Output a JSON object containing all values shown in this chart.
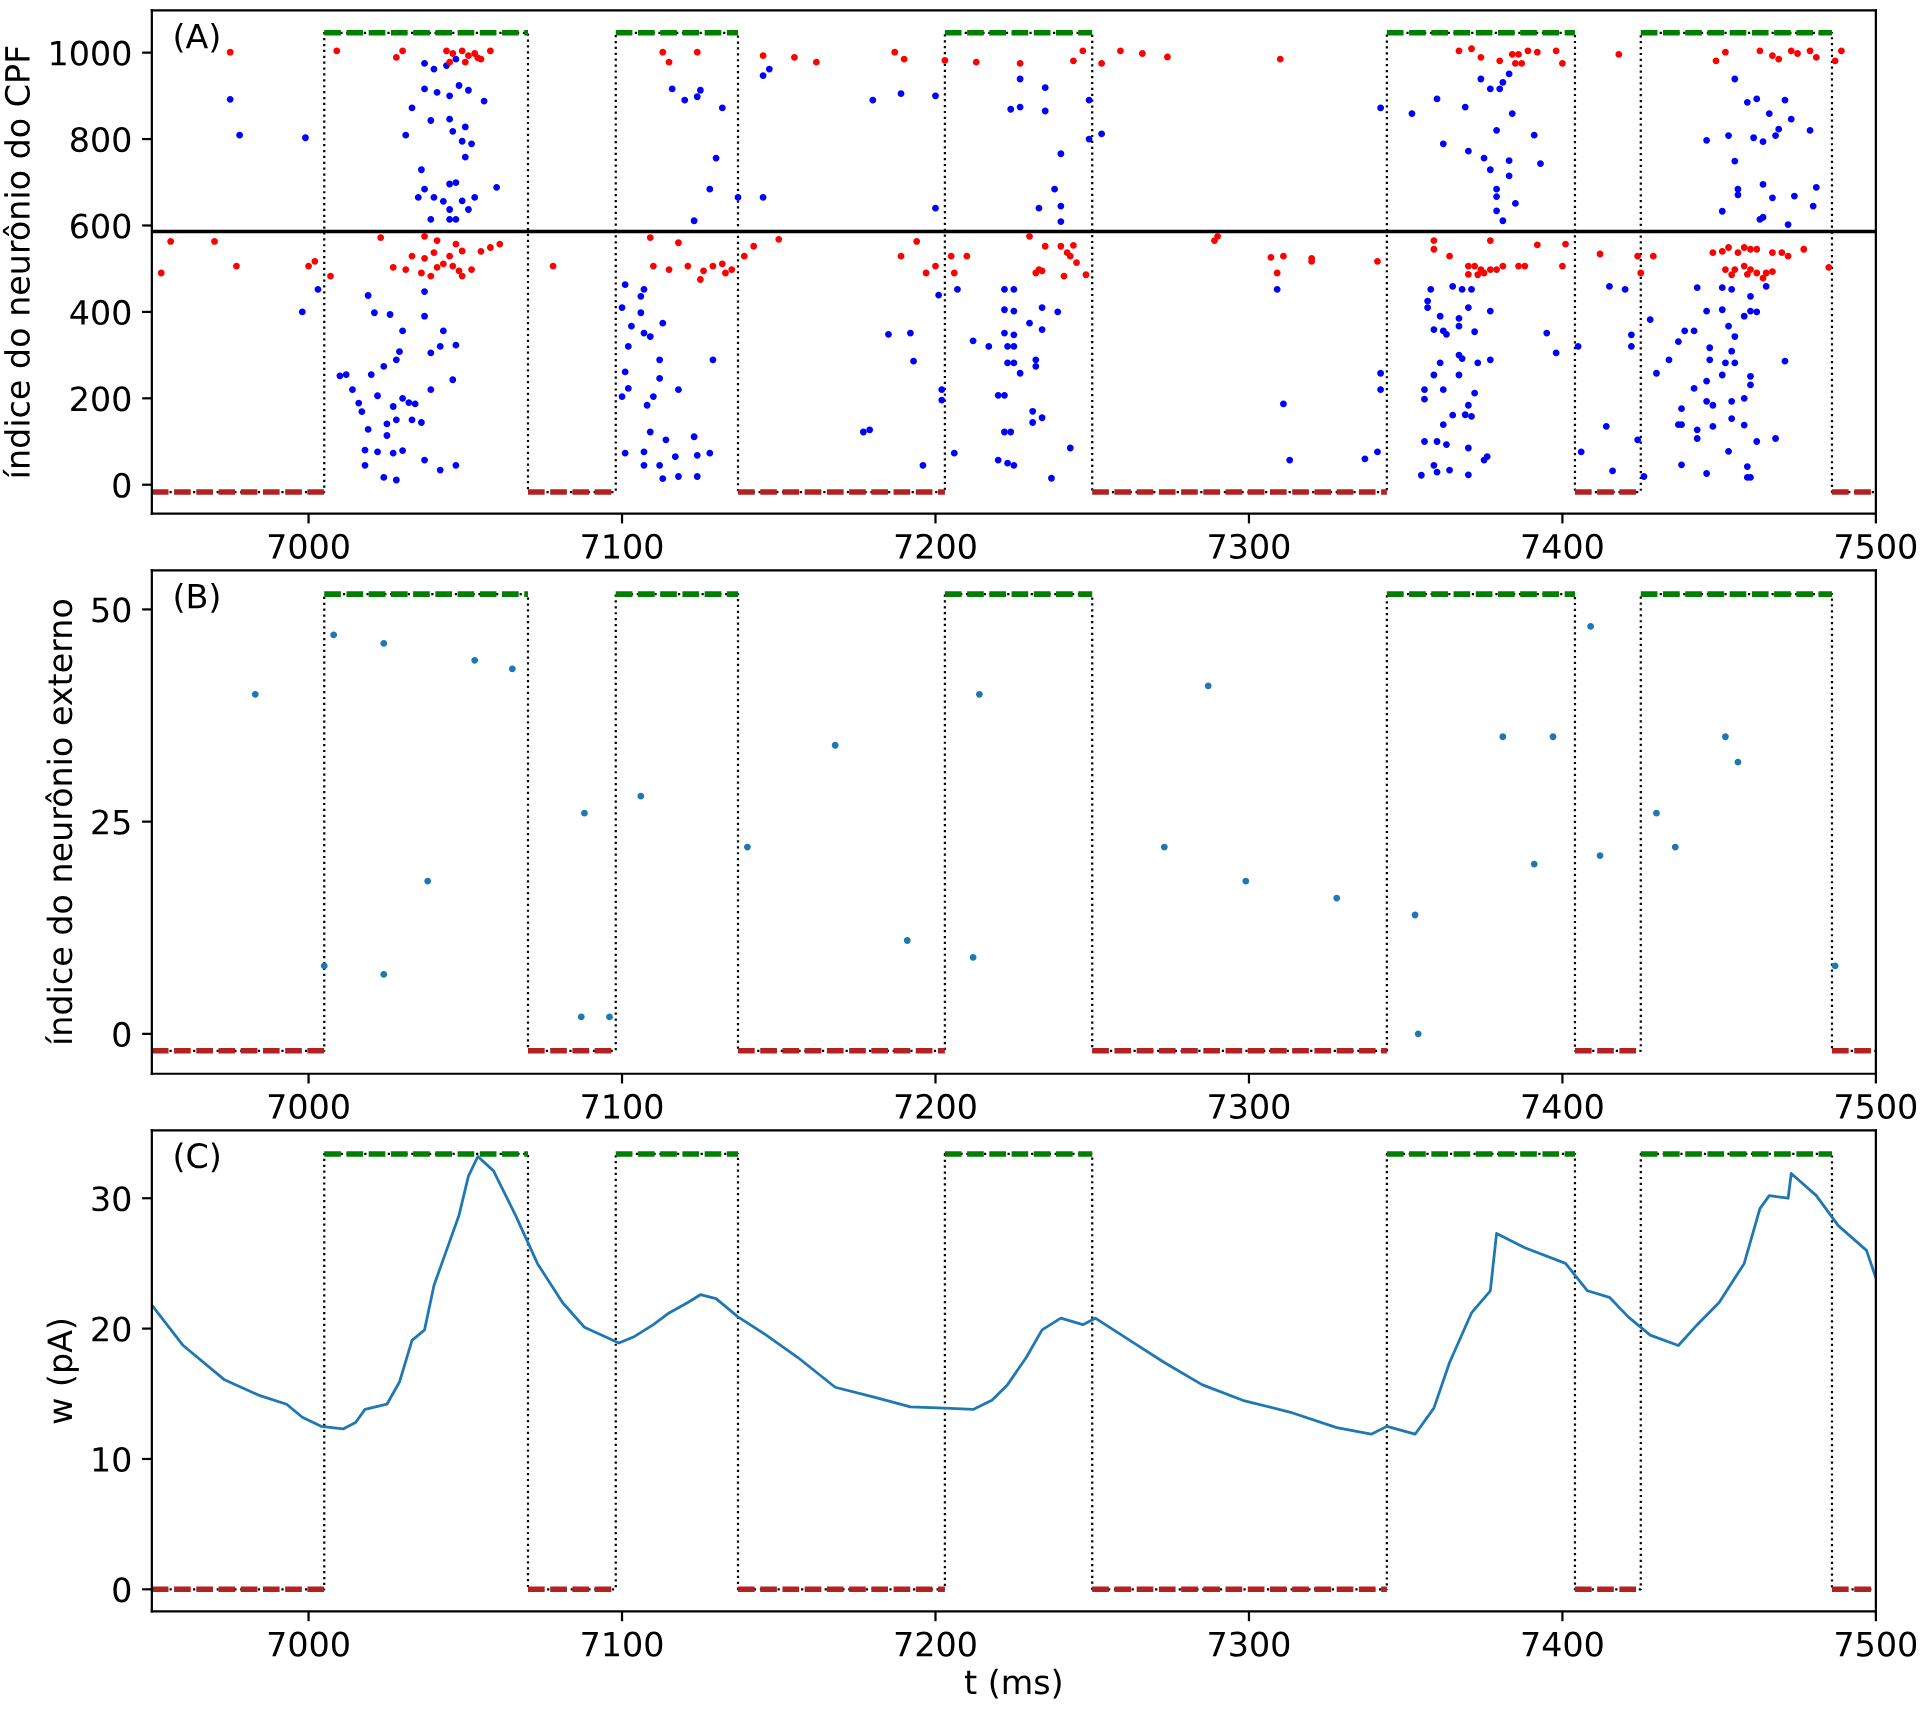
{
  "chart_data": [
    {
      "type": "scatter",
      "annotations": [
        "(A)"
      ],
      "ylabel": "índice do neurônio do CPF",
      "xlim": [
        6950,
        7500
      ],
      "ylim": [
        -67,
        1098
      ],
      "xticks": [
        7000,
        7100,
        7200,
        7300,
        7400,
        7500
      ],
      "yticks": [
        0,
        200,
        400,
        600,
        800,
        1000
      ],
      "ref_lines": [
        {
          "axis": "y",
          "value": 586,
          "color": "#000000"
        }
      ],
      "series": [
        {
          "type": "step",
          "color": "#000000",
          "line_style": "dotted",
          "marker": "none",
          "x": [
            6950,
            7005,
            7070,
            7098,
            7137,
            7203,
            7250,
            7344,
            7404,
            7425,
            7486,
            7500
          ],
          "values": [
            -17,
            1046,
            -17,
            1046,
            -17,
            1046,
            -17,
            1046,
            -17,
            1046,
            -17,
            -17
          ]
        },
        {
          "type": "line",
          "color": "#008000",
          "line_style": "dashed",
          "marker": "none",
          "x": [
            7005,
            7070,
            7084,
            7098,
            7137,
            7170,
            7203,
            7250,
            7297,
            7344,
            7404,
            7414,
            7425,
            7486
          ],
          "values": [
            1046,
            1046,
            null,
            1046,
            1046,
            null,
            1046,
            1046,
            null,
            1046,
            1046,
            null,
            1046,
            1046
          ]
        },
        {
          "type": "line",
          "color": "#b22222",
          "line_style": "dashed",
          "marker": "none",
          "x": [
            6950,
            7005,
            7037,
            7070,
            7098,
            7117,
            7137,
            7203,
            7226,
            7250,
            7344,
            7374,
            7404,
            7425,
            7455,
            7486,
            7500
          ],
          "values": [
            -17,
            -17,
            null,
            -17,
            -17,
            null,
            -17,
            -17,
            null,
            -17,
            -17,
            null,
            -17,
            -17,
            null,
            -17,
            -17
          ]
        },
        {
          "color": "#0000ff",
          "marker": "circle",
          "x": [
            6975,
            6978,
            6999,
            6998,
            7003,
            7037,
            7040,
            7044,
            7047,
            7037,
            7041,
            7045,
            7048,
            7051,
            7056,
            7033,
            7039,
            7045,
            7050,
            7031,
            7046,
            7049,
            7052,
            7050,
            7036,
            7037,
            7035,
            7040,
            7045,
            7047,
            7043,
            7049,
            7053,
            7060,
            7045,
            7051,
            7045,
            7047,
            7039,
            7019,
            7021,
            7026,
            7030,
            7037,
            7037,
            7043,
            7047,
            7010,
            7012,
            7020,
            7014,
            7024,
            7029,
            7028,
            7039,
            7042,
            7046,
            7016,
            7017,
            7022,
            7027,
            7030,
            7032,
            7034,
            7039,
            7019,
            7025,
            7028,
            7036,
            7033,
            7025,
            7018,
            7022,
            7027,
            7030,
            7018,
            7024,
            7028,
            7037,
            7042,
            7047,
            7116,
            7120,
            7124,
            7125,
            7132,
            7130,
            7128,
            7123,
            7137,
            7145,
            7145,
            7147,
            7101,
            7100,
            7107,
            7106,
            7106,
            7113,
            7103,
            7107,
            7102,
            7109,
            7112,
            7101,
            7112,
            7118,
            7129,
            7100,
            7102,
            7108,
            7110,
            7109,
            7114,
            7123,
            7101,
            7107,
            7117,
            7124,
            7128,
            7107,
            7112,
            7113,
            7118,
            7124,
            7180,
            7189,
            7200,
            7200,
            7177,
            7179,
            7185,
            7192,
            7193,
            7196,
            7201,
            7202,
            7202,
            7207,
            7212,
            7222,
            7222,
            7217,
            7222,
            7223,
            7223,
            7220,
            7222,
            7222,
            7220,
            7223,
            7206,
            7224,
            7227,
            7227,
            7235,
            7235,
            7240,
            7238,
            7240,
            7240,
            7233,
            7249,
            7249,
            7253,
            7225,
            7225,
            7225,
            7230,
            7234,
            7234,
            7225,
            7225,
            7227,
            7232,
            7232,
            7231,
            7234,
            7231,
            7224,
            7225,
            7237,
            7243,
            7239,
            7342,
            7309,
            7311,
            7313,
            7337,
            7341,
            7342,
            7342,
            7352,
            7360,
            7369,
            7374,
            7377,
            7380,
            7381,
            7384,
            7379,
            7383,
            7362,
            7370,
            7375,
            7377,
            7383,
            7393,
            7391,
            7383,
            7379,
            7379,
            7385,
            7379,
            7381,
            7358,
            7357,
            7357,
            7365,
            7368,
            7371,
            7361,
            7367,
            7370,
            7377,
            7359,
            7362,
            7367,
            7372,
            7363,
            7395,
            7398,
            7367,
            7368,
            7373,
            7377,
            7361,
            7359,
            7367,
            7356,
            7362,
            7372,
            7356,
            7370,
            7371,
            7365,
            7369,
            7362,
            7356,
            7360,
            7363,
            7370,
            7376,
            7375,
            7359,
            7360,
            7364,
            7355,
            7370,
            7405,
            7406,
            7414,
            7416,
            7415,
            7420,
            7422,
            7422,
            7455,
            7459,
            7462,
            7471,
            7466,
            7473,
            7446,
            7453,
            7461,
            7464,
            7468,
            7469,
            7479,
            7455,
            7456,
            7456,
            7464,
            7467,
            7474,
            7481,
            7480,
            7451,
            7463,
            7464,
            7472,
            7443,
            7451,
            7454,
            7460,
            7460,
            7446,
            7451,
            7458,
            7462,
            7465,
            7428,
            7439,
            7442,
            7437,
            7453,
            7455,
            7447,
            7454,
            7434,
            7447,
            7452,
            7455,
            7471,
            7430,
            7451,
            7460,
            7460,
            7446,
            7442,
            7448,
            7446,
            7454,
            7458,
            7438,
            7437,
            7438,
            7443,
            7448,
            7454,
            7458,
            7468,
            7443,
            7462,
            7424,
            7438,
            7446,
            7453,
            7459,
            7459,
            7460,
            7426
          ],
          "values": [
            892,
            809,
            803,
            400,
            452,
            975,
            962,
            970,
            985,
            916,
            908,
            900,
            924,
            913,
            888,
            872,
            843,
            846,
            828,
            809,
            818,
            795,
            789,
            758,
            729,
            684,
            665,
            665,
            696,
            699,
            656,
            657,
            665,
            688,
            637,
            637,
            614,
            614,
            614,
            438,
            398,
            394,
            356,
            447,
            390,
            356,
            323,
            252,
            255,
            255,
            220,
            274,
            308,
            289,
            305,
            320,
            243,
            189,
            169,
            206,
            181,
            200,
            190,
            187,
            220,
            128,
            141,
            150,
            144,
            150,
            114,
            80,
            76,
            73,
            79,
            45,
            17,
            11,
            57,
            34,
            45,
            916,
            890,
            898,
            913,
            872,
            756,
            684,
            611,
            665,
            665,
            947,
            962,
            463,
            410,
            452,
            436,
            398,
            374,
            367,
            351,
            320,
            343,
            289,
            261,
            246,
            220,
            289,
            204,
            223,
            184,
            204,
            122,
            104,
            111,
            73,
            76,
            65,
            68,
            73,
            45,
            45,
            14,
            19,
            19,
            890,
            905,
            900,
            640,
            122,
            127,
            348,
            351,
            286,
            45,
            439,
            220,
            196,
            452,
            333,
            452,
            405,
            320,
            351,
            320,
            282,
            207,
            207,
            122,
            57,
            50,
            73,
            869,
            939,
            874,
            919,
            865,
            766,
            684,
            645,
            609,
            640,
            890,
            800,
            812,
            452,
            402,
            347,
            374,
            410,
            359,
            320,
            282,
            258,
            289,
            274,
            170,
            155,
            144,
            122,
            45,
            15,
            85,
            400,
            872,
            452,
            187,
            57,
            60,
            76,
            220,
            258,
            859,
            893,
            874,
            939,
            916,
            916,
            931,
            859,
            820,
            951,
            789,
            772,
            756,
            729,
            750,
            743,
            809,
            715,
            684,
            667,
            651,
            634,
            611,
            452,
            425,
            410,
            459,
            452,
            452,
            390,
            385,
            410,
            402,
            359,
            356,
            367,
            354,
            348,
            351,
            305,
            300,
            292,
            282,
            289,
            282,
            254,
            254,
            220,
            220,
            212,
            198,
            184,
            158,
            161,
            162,
            139,
            100,
            100,
            93,
            85,
            65,
            57,
            45,
            29,
            34,
            22,
            23,
            320,
            76,
            135,
            32,
            459,
            452,
            347,
            320,
            939,
            885,
            893,
            890,
            859,
            846,
            797,
            808,
            803,
            794,
            808,
            823,
            820,
            749,
            684,
            671,
            695,
            664,
            668,
            688,
            645,
            633,
            614,
            619,
            602,
            456,
            456,
            452,
            436,
            402,
            402,
            405,
            390,
            400,
            459,
            382,
            356,
            356,
            331,
            367,
            343,
            317,
            309,
            289,
            289,
            282,
            282,
            286,
            258,
            254,
            251,
            231,
            240,
            223,
            184,
            193,
            193,
            200,
            176,
            139,
            139,
            127,
            135,
            153,
            138,
            107,
            107,
            100,
            104,
            46,
            26,
            77,
            42,
            17,
            17,
            19
          ]
        },
        {
          "color": "#ff0000",
          "marker": "circle",
          "x": [
            6975,
            6953,
            6956,
            6970,
            6977,
            7000,
            7002,
            7007,
            7009,
            7023,
            7028,
            7030,
            7044,
            7046,
            7049,
            7051,
            7053,
            7055,
            7058,
            7045,
            7050,
            7054,
            7037,
            7041,
            7047,
            7049,
            7055,
            7061,
            7058,
            7033,
            7037,
            7040,
            7045,
            7027,
            7031,
            7036,
            7041,
            7043,
            7046,
            7048,
            7052,
            7039,
            7049,
            7078,
            7113,
            7115,
            7124,
            7109,
            7118,
            7110,
            7115,
            7121,
            7126,
            7129,
            7132,
            7133,
            7135,
            7125,
            7139,
            7142,
            7150,
            7145,
            7155,
            7162,
            7187,
            7190,
            7189,
            7194,
            7197,
            7200,
            7203,
            7205,
            7206,
            7210,
            7213,
            7227,
            7244,
            7247,
            7253,
            7259,
            7266,
            7274,
            7310,
            7230,
            7235,
            7240,
            7242,
            7243,
            7245,
            7244,
            7233,
            7232,
            7234,
            7241,
            7248,
            7289,
            7290,
            7307,
            7311,
            7320,
            7320,
            7309,
            7341,
            7367,
            7371,
            7374,
            7380,
            7384,
            7386,
            7389,
            7392,
            7398,
            7400,
            7385,
            7387,
            7418,
            7359,
            7359,
            7364,
            7377,
            7392,
            7401,
            7400,
            7370,
            7372,
            7374,
            7377,
            7379,
            7381,
            7386,
            7388,
            7370,
            7373,
            7375,
            7412,
            7424,
            7425,
            7429,
            7449,
            7452,
            7463,
            7467,
            7469,
            7473,
            7475,
            7479,
            7481,
            7487,
            7489,
            7448,
            7451,
            7453,
            7458,
            7460,
            7462,
            7456,
            7452,
            7455,
            7458,
            7460,
            7462,
            7465,
            7467,
            7454,
            7459,
            7467,
            7470,
            7472,
            7477,
            7485,
            7464
          ],
          "values": [
            1001,
            490,
            563,
            563,
            506,
            506,
            517,
            483,
            1004,
            572,
            989,
            1004,
            1004,
            998,
            1004,
            993,
            998,
            985,
            1004,
            978,
            978,
            988,
            575,
            565,
            557,
            541,
            540,
            557,
            549,
            529,
            524,
            537,
            529,
            503,
            498,
            490,
            503,
            511,
            506,
            495,
            498,
            483,
            483,
            506,
            1001,
            978,
            1001,
            572,
            560,
            506,
            498,
            506,
            495,
            506,
            511,
            490,
            498,
            475,
            529,
            552,
            568,
            993,
            989,
            978,
            1001,
            985,
            529,
            563,
            490,
            506,
            982,
            529,
            490,
            529,
            978,
            975,
            981,
            1004,
            975,
            1004,
            998,
            990,
            985,
            575,
            552,
            552,
            537,
            529,
            514,
            554,
            498,
            490,
            495,
            483,
            486,
            565,
            575,
            526,
            529,
            524,
            517,
            490,
            517,
            1004,
            1009,
            989,
            981,
            996,
            996,
            1004,
            1001,
            1004,
            975,
            975,
            975,
            996,
            565,
            545,
            529,
            565,
            555,
            557,
            506,
            506,
            506,
            498,
            498,
            498,
            506,
            506,
            506,
            487,
            486,
            490,
            534,
            529,
            490,
            529,
            981,
            1001,
            1004,
            993,
            985,
            1004,
            998,
            1004,
            989,
            981,
            1004,
            537,
            540,
            549,
            549,
            545,
            545,
            537,
            498,
            498,
            506,
            498,
            490,
            490,
            493,
            486,
            487,
            537,
            537,
            529,
            545,
            503,
            478
          ]
        }
      ]
    },
    {
      "type": "scatter",
      "annotations": [
        "(B)"
      ],
      "ylabel": "índice do neurônio externo",
      "xlim": [
        6950,
        7500
      ],
      "ylim": [
        -4.7,
        54.6
      ],
      "xticks": [
        7000,
        7100,
        7200,
        7300,
        7400,
        7500
      ],
      "yticks": [
        0,
        25,
        50
      ],
      "series": [
        {
          "type": "step",
          "color": "#000000",
          "line_style": "dotted",
          "marker": "none",
          "x": [
            6950,
            7005,
            7070,
            7098,
            7137,
            7203,
            7250,
            7344,
            7404,
            7425,
            7486,
            7500
          ],
          "values": [
            -2.0,
            51.8,
            -2.0,
            51.8,
            -2.0,
            51.8,
            -2.0,
            51.8,
            -2.0,
            51.8,
            -2.0,
            -2.0
          ]
        },
        {
          "type": "line",
          "color": "#008000",
          "line_style": "dashed",
          "marker": "none",
          "x": [
            7005,
            7070,
            7084,
            7098,
            7137,
            7170,
            7203,
            7250,
            7297,
            7344,
            7404,
            7414,
            7425,
            7486
          ],
          "values": [
            51.8,
            51.8,
            null,
            51.8,
            51.8,
            null,
            51.8,
            51.8,
            null,
            51.8,
            51.8,
            null,
            51.8,
            51.8
          ]
        },
        {
          "type": "line",
          "color": "#b22222",
          "line_style": "dashed",
          "marker": "none",
          "x": [
            6950,
            7005,
            7037,
            7070,
            7098,
            7117,
            7137,
            7203,
            7226,
            7250,
            7344,
            7374,
            7404,
            7425,
            7455,
            7486,
            7500
          ],
          "values": [
            -2.0,
            -2.0,
            null,
            -2.0,
            -2.0,
            null,
            -2.0,
            -2.0,
            null,
            -2.0,
            -2.0,
            null,
            -2.0,
            -2.0,
            null,
            -2.0,
            -2.0
          ]
        },
        {
          "color": "#1f77b4",
          "marker": "circle",
          "x": [
            6983,
            7005,
            7008,
            7024,
            7024,
            7038,
            7053,
            7065,
            7087,
            7088,
            7096,
            7106,
            7140,
            7168,
            7191,
            7212,
            7214,
            7273,
            7287,
            7299,
            7328,
            7353,
            7354,
            7381,
            7391,
            7397,
            7409,
            7412,
            7430,
            7436,
            7452,
            7456,
            7487
          ],
          "values": [
            40,
            8,
            47,
            46,
            7,
            18,
            44,
            43,
            2,
            26,
            2,
            28,
            22,
            34,
            11,
            9,
            40,
            22,
            41,
            18,
            16,
            14,
            0,
            35,
            20,
            35,
            48,
            21,
            26,
            22,
            35,
            32,
            8
          ]
        }
      ]
    },
    {
      "type": "line",
      "annotations": [
        "(C)"
      ],
      "xlabel": "t (ms)",
      "ylabel": "w (pA)",
      "xlim": [
        6950,
        7500
      ],
      "ylim": [
        -1.7,
        35.2
      ],
      "xticks": [
        7000,
        7100,
        7200,
        7300,
        7400,
        7500
      ],
      "yticks": [
        0,
        10,
        20,
        30
      ],
      "series": [
        {
          "type": "step",
          "color": "#000000",
          "line_style": "dotted",
          "marker": "none",
          "x": [
            6950,
            7005,
            7070,
            7098,
            7137,
            7203,
            7250,
            7344,
            7404,
            7425,
            7486,
            7500
          ],
          "values": [
            0,
            33.4,
            0,
            33.4,
            0,
            33.4,
            0,
            33.4,
            0,
            33.4,
            0,
            0
          ]
        },
        {
          "type": "line",
          "color": "#008000",
          "line_style": "dashed",
          "marker": "none",
          "x": [
            7005,
            7070,
            7084,
            7098,
            7137,
            7170,
            7203,
            7250,
            7297,
            7344,
            7404,
            7414,
            7425,
            7486
          ],
          "values": [
            33.4,
            33.4,
            null,
            33.4,
            33.4,
            null,
            33.4,
            33.4,
            null,
            33.4,
            33.4,
            null,
            33.4,
            33.4
          ]
        },
        {
          "type": "line",
          "color": "#b22222",
          "line_style": "dashed",
          "marker": "none",
          "x": [
            6950,
            7005,
            7037,
            7070,
            7098,
            7117,
            7137,
            7203,
            7226,
            7250,
            7344,
            7374,
            7404,
            7425,
            7455,
            7486,
            7500
          ],
          "values": [
            0,
            0,
            null,
            0,
            0,
            null,
            0,
            0,
            null,
            0,
            0,
            null,
            0,
            0,
            null,
            0,
            0
          ]
        },
        {
          "color": "#1f77b4",
          "line_style": "solid",
          "marker": "none",
          "x": [
            6950,
            6960,
            6973,
            6984,
            6993,
            6998,
            7004,
            7011,
            7015,
            7018,
            7025,
            7029,
            7033,
            7037,
            7040,
            7044,
            7048,
            7051,
            7054,
            7059,
            7066,
            7073,
            7081,
            7088,
            7099,
            7104,
            7110,
            7115,
            7121,
            7125,
            7130,
            7137,
            7146,
            7156,
            7168,
            7181,
            7192,
            7203,
            7212,
            7218,
            7223,
            7229,
            7234,
            7240,
            7247,
            7251,
            7262,
            7273,
            7285,
            7298,
            7313,
            7328,
            7339,
            7344,
            7353,
            7359,
            7364,
            7371,
            7377,
            7379,
            7388,
            7401,
            7408,
            7415,
            7421,
            7428,
            7437,
            7443,
            7450,
            7458,
            7463,
            7466,
            7472,
            7473,
            7481,
            7488,
            7497,
            7500
          ],
          "values": [
            21.8,
            18.7,
            16.1,
            14.9,
            14.2,
            13.2,
            12.5,
            12.3,
            12.8,
            13.8,
            14.2,
            15.9,
            19.1,
            19.9,
            23.3,
            26.0,
            28.7,
            31.7,
            33.2,
            32.1,
            28.7,
            25.0,
            22.0,
            20.1,
            18.9,
            19.4,
            20.3,
            21.2,
            22.0,
            22.6,
            22.3,
            20.9,
            19.5,
            17.8,
            15.5,
            14.7,
            14.0,
            13.9,
            13.8,
            14.5,
            15.7,
            17.8,
            19.9,
            20.8,
            20.3,
            20.8,
            19.1,
            17.4,
            15.7,
            14.5,
            13.6,
            12.4,
            11.9,
            12.5,
            11.9,
            13.9,
            17.4,
            21.2,
            22.9,
            27.3,
            26.2,
            25.0,
            22.9,
            22.4,
            20.9,
            19.5,
            18.7,
            20.3,
            22.0,
            25.0,
            29.2,
            30.2,
            30.0,
            31.9,
            30.2,
            27.9,
            26.0,
            23.9
          ]
        }
      ]
    }
  ]
}
